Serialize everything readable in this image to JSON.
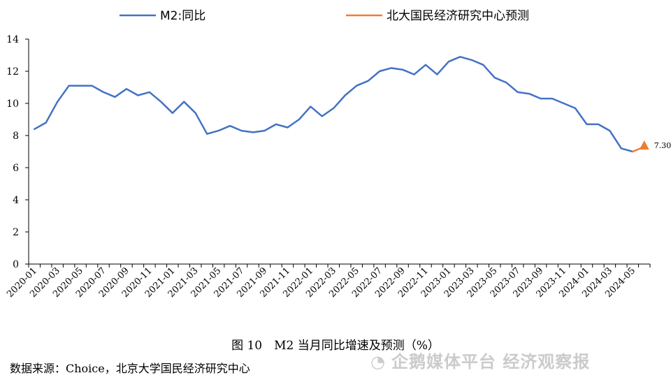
{
  "chart_data": {
    "type": "line",
    "x": [
      "2020-01",
      "2020-02",
      "2020-03",
      "2020-04",
      "2020-05",
      "2020-06",
      "2020-07",
      "2020-08",
      "2020-09",
      "2020-10",
      "2020-11",
      "2020-12",
      "2021-01",
      "2021-02",
      "2021-03",
      "2021-04",
      "2021-05",
      "2021-06",
      "2021-07",
      "2021-08",
      "2021-09",
      "2021-10",
      "2021-11",
      "2021-12",
      "2022-01",
      "2022-02",
      "2022-03",
      "2022-04",
      "2022-05",
      "2022-06",
      "2022-07",
      "2022-08",
      "2022-09",
      "2022-10",
      "2022-11",
      "2022-12",
      "2023-01",
      "2023-02",
      "2023-03",
      "2023-04",
      "2023-05",
      "2023-06",
      "2023-07",
      "2023-08",
      "2023-09",
      "2023-10",
      "2023-11",
      "2023-12",
      "2024-01",
      "2024-02",
      "2024-03",
      "2024-04",
      "2024-05",
      "2024-06"
    ],
    "x_tick_labels": [
      "2020-01",
      "2020-03",
      "2020-05",
      "2020-07",
      "2020-09",
      "2020-11",
      "2021-01",
      "2021-03",
      "2021-05",
      "2021-07",
      "2021-09",
      "2021-11",
      "2022-01",
      "2022-03",
      "2022-05",
      "2022-07",
      "2022-09",
      "2022-11",
      "2023-01",
      "2023-03",
      "2023-05",
      "2023-07",
      "2023-09",
      "2023-11",
      "2024-01",
      "2024-03",
      "2024-05"
    ],
    "series": [
      {
        "name": "M2:同比",
        "color": "#4472C4",
        "values": [
          8.4,
          8.8,
          10.1,
          11.1,
          11.1,
          11.1,
          10.7,
          10.4,
          10.9,
          10.5,
          10.7,
          10.1,
          9.4,
          10.1,
          9.4,
          8.1,
          8.3,
          8.6,
          8.3,
          8.2,
          8.3,
          8.7,
          8.5,
          9.0,
          9.8,
          9.2,
          9.7,
          10.5,
          11.1,
          11.4,
          12.0,
          12.2,
          12.1,
          11.8,
          12.4,
          11.8,
          12.6,
          12.9,
          12.7,
          12.4,
          11.6,
          11.3,
          10.7,
          10.6,
          10.3,
          10.3,
          10.0,
          9.7,
          8.7,
          8.7,
          8.3,
          7.2,
          7.0,
          null
        ]
      },
      {
        "name": "北大国民经济研究中心预测",
        "color": "#ED7D31",
        "values": [
          null,
          null,
          null,
          null,
          null,
          null,
          null,
          null,
          null,
          null,
          null,
          null,
          null,
          null,
          null,
          null,
          null,
          null,
          null,
          null,
          null,
          null,
          null,
          null,
          null,
          null,
          null,
          null,
          null,
          null,
          null,
          null,
          null,
          null,
          null,
          null,
          null,
          null,
          null,
          null,
          null,
          null,
          null,
          null,
          null,
          null,
          null,
          null,
          null,
          null,
          null,
          null,
          7.0,
          7.3
        ]
      }
    ],
    "annotations": [
      {
        "x": "2024-06",
        "y": 7.3,
        "text": "7.30"
      }
    ],
    "y_ticks": [
      0,
      2,
      4,
      6,
      8,
      10,
      12,
      14
    ],
    "ylim": [
      0,
      14
    ],
    "legend": "top",
    "grid": false
  },
  "caption": "图 10　M2 当月同比增速及预测（%）",
  "source": "数据来源：Choice，北京大学国民经济研究中心",
  "watermark": "企鹅媒体平台 经济观察报"
}
